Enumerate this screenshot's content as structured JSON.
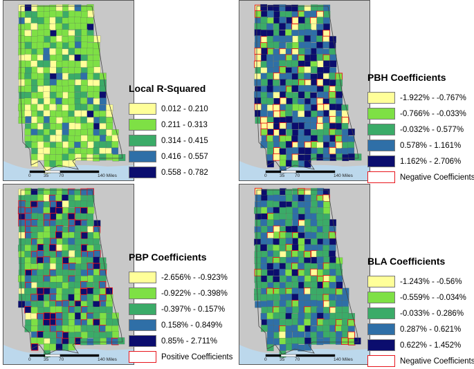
{
  "panels": [
    {
      "id": "local-r-squared",
      "legend_title": "Local R-Squared",
      "legend_items": [
        {
          "label": "0.012 - 0.210",
          "color": "#ffff99"
        },
        {
          "label": "0.211 - 0.313",
          "color": "#7ee045"
        },
        {
          "label": "0.314 - 0.415",
          "color": "#3bab68"
        },
        {
          "label": "0.416 - 0.557",
          "color": "#2f6fa7"
        },
        {
          "label": "0.558 - 0.782",
          "color": "#0b0d6e"
        }
      ],
      "outline_label": ""
    },
    {
      "id": "pbh-coefficients",
      "legend_title": "PBH Coefficients",
      "legend_items": [
        {
          "label": "-1.922% - -0.767%",
          "color": "#ffff99"
        },
        {
          "label": "-0.766% - -0.033%",
          "color": "#7ee045"
        },
        {
          "label": "-0.032% - 0.577%",
          "color": "#3bab68"
        },
        {
          "label": "0.578% - 1.161%",
          "color": "#2f6fa7"
        },
        {
          "label": "1.162% - 2.706%",
          "color": "#0b0d6e"
        }
      ],
      "outline_label": "Negative Coefficients"
    },
    {
      "id": "pbp-coefficients",
      "legend_title": "PBP Coefficients",
      "legend_items": [
        {
          "label": "-2.656% - -0.923%",
          "color": "#ffff99"
        },
        {
          "label": "-0.922% - -0.398%",
          "color": "#7ee045"
        },
        {
          "label": "-0.397% - 0.157%",
          "color": "#3bab68"
        },
        {
          "label": "0.158% - 0.849%",
          "color": "#2f6fa7"
        },
        {
          "label": "0.85% - 2.711%",
          "color": "#0b0d6e"
        }
      ],
      "outline_label": "Positive Coefficients"
    },
    {
      "id": "bla-coefficients",
      "legend_title": "BLA Coefficients",
      "legend_items": [
        {
          "label": "-1.243% - -0.56%",
          "color": "#ffff99"
        },
        {
          "label": "-0.559% - -0.034%",
          "color": "#7ee045"
        },
        {
          "label": "-0.033% - 0.286%",
          "color": "#3bab68"
        },
        {
          "label": "0.287% - 0.621%",
          "color": "#2f6fa7"
        },
        {
          "label": "0.622% - 1.452%",
          "color": "#0b0d6e"
        }
      ],
      "outline_label": "Negative Coefficients"
    }
  ],
  "scale_bar": {
    "ticks": [
      "0",
      "35",
      "70",
      "140 Miles"
    ]
  },
  "colors": {
    "background": "#c8c8c8",
    "water": "#bcd8ec",
    "outline": "#e8141b"
  }
}
